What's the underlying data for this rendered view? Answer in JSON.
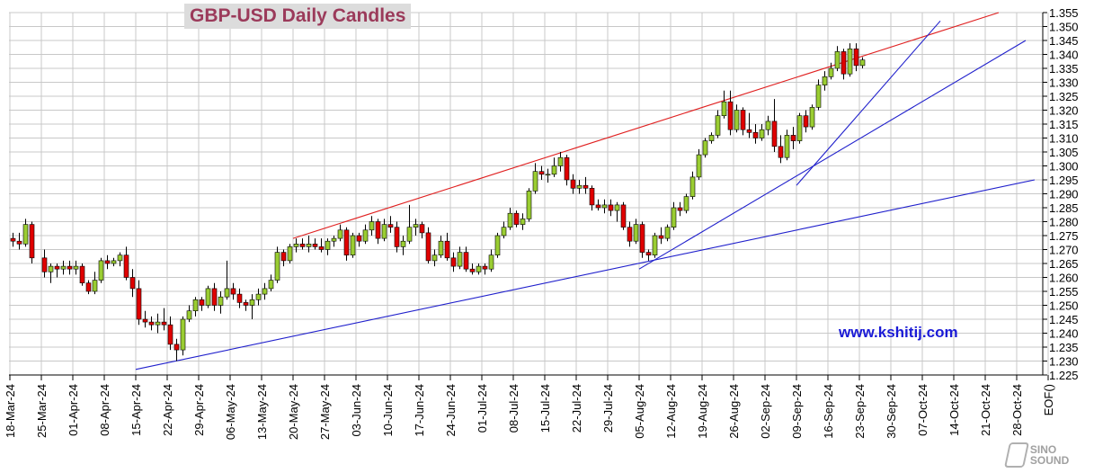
{
  "header": {
    "title": "GBP-USD Daily Candles",
    "website": "www.kshitij.com",
    "watermark_text": "SINO SOUND"
  },
  "colors": {
    "up_candle": "#9acd32",
    "down_candle": "#e00000",
    "grid": "#c8c8c8",
    "resistance_line": "#e02020",
    "support_lines": "#2020cc"
  },
  "chart_data": {
    "type": "candlestick",
    "title": "GBP-USD Daily Candles",
    "ylim": [
      1.225,
      1.355
    ],
    "y_ticks": [
      "1.355",
      "1.350",
      "1.345",
      "1.340",
      "1.335",
      "1.330",
      "1.325",
      "1.320",
      "1.315",
      "1.310",
      "1.305",
      "1.300",
      "1.295",
      "1.290",
      "1.285",
      "1.280",
      "1.275",
      "1.270",
      "1.265",
      "1.260",
      "1.255",
      "1.250",
      "1.245",
      "1.240",
      "1.235",
      "1.230",
      "1.225"
    ],
    "x_tick_labels": [
      "18-Mar-24",
      "25-Mar-24",
      "01-Apr-24",
      "08-Apr-24",
      "15-Apr-24",
      "22-Apr-24",
      "29-Apr-24",
      "06-May-24",
      "13-May-24",
      "20-May-24",
      "27-May-24",
      "03-Jun-24",
      "10-Jun-24",
      "17-Jun-24",
      "24-Jun-24",
      "01-Jul-24",
      "08-Jul-24",
      "15-Jul-24",
      "22-Jul-24",
      "29-Jul-24",
      "05-Aug-24",
      "12-Aug-24",
      "19-Aug-24",
      "26-Aug-24",
      "02-Sep-24",
      "09-Sep-24",
      "16-Sep-24",
      "23-Sep-24",
      "30-Sep-24",
      "07-Oct-24",
      "14-Oct-24",
      "21-Oct-24",
      "28-Oct-24",
      "EOF()"
    ],
    "grid": true,
    "candle_weeks": [
      [
        [
          1.274,
          1.276,
          1.271,
          1.273
        ],
        [
          1.273,
          1.276,
          1.27,
          1.272
        ],
        [
          1.272,
          1.281,
          1.271,
          1.279
        ],
        [
          1.279,
          1.28,
          1.265,
          1.267
        ]
      ],
      [
        [
          1.267,
          1.27,
          1.26,
          1.262
        ],
        [
          1.262,
          1.265,
          1.258,
          1.264
        ],
        [
          1.264,
          1.265,
          1.26,
          1.263
        ],
        [
          1.263,
          1.266,
          1.261,
          1.264
        ],
        [
          1.264,
          1.266,
          1.261,
          1.263
        ]
      ],
      [
        [
          1.263,
          1.266,
          1.261,
          1.264
        ],
        [
          1.264,
          1.265,
          1.257,
          1.258
        ],
        [
          1.258,
          1.259,
          1.254,
          1.255
        ],
        [
          1.255,
          1.262,
          1.254,
          1.259
        ],
        [
          1.259,
          1.267,
          1.258,
          1.266
        ]
      ],
      [
        [
          1.266,
          1.268,
          1.263,
          1.265
        ],
        [
          1.265,
          1.267,
          1.264,
          1.266
        ],
        [
          1.266,
          1.269,
          1.264,
          1.268
        ],
        [
          1.268,
          1.271,
          1.259,
          1.26
        ],
        [
          1.26,
          1.263,
          1.253,
          1.256
        ]
      ],
      [
        [
          1.256,
          1.259,
          1.243,
          1.245
        ],
        [
          1.245,
          1.248,
          1.242,
          1.244
        ],
        [
          1.244,
          1.246,
          1.241,
          1.243
        ],
        [
          1.243,
          1.247,
          1.24,
          1.244
        ],
        [
          1.244,
          1.249,
          1.241,
          1.243
        ]
      ],
      [
        [
          1.243,
          1.246,
          1.234,
          1.236
        ],
        [
          1.236,
          1.238,
          1.23,
          1.234
        ],
        [
          1.234,
          1.246,
          1.232,
          1.245
        ],
        [
          1.245,
          1.25,
          1.244,
          1.248
        ],
        [
          1.248,
          1.253,
          1.246,
          1.252
        ]
      ],
      [
        [
          1.252,
          1.253,
          1.248,
          1.25
        ],
        [
          1.25,
          1.257,
          1.249,
          1.256
        ],
        [
          1.256,
          1.258,
          1.248,
          1.25
        ],
        [
          1.25,
          1.255,
          1.247,
          1.253
        ],
        [
          1.253,
          1.266,
          1.252,
          1.256
        ]
      ],
      [
        [
          1.256,
          1.258,
          1.252,
          1.254
        ],
        [
          1.254,
          1.256,
          1.249,
          1.251
        ],
        [
          1.251,
          1.252,
          1.248,
          1.25
        ],
        [
          1.25,
          1.254,
          1.245,
          1.252
        ],
        [
          1.252,
          1.256,
          1.25,
          1.254
        ]
      ],
      [
        [
          1.254,
          1.258,
          1.252,
          1.256
        ],
        [
          1.256,
          1.261,
          1.255,
          1.259
        ],
        [
          1.259,
          1.271,
          1.258,
          1.269
        ],
        [
          1.269,
          1.27,
          1.264,
          1.266
        ],
        [
          1.266,
          1.272,
          1.265,
          1.271
        ]
      ],
      [
        [
          1.271,
          1.274,
          1.269,
          1.272
        ],
        [
          1.272,
          1.274,
          1.27,
          1.271
        ],
        [
          1.271,
          1.275,
          1.269,
          1.272
        ],
        [
          1.272,
          1.274,
          1.27,
          1.271
        ],
        [
          1.271,
          1.274,
          1.269,
          1.27
        ]
      ],
      [
        [
          1.27,
          1.274,
          1.268,
          1.273
        ],
        [
          1.273,
          1.275,
          1.271,
          1.274
        ],
        [
          1.274,
          1.279,
          1.273,
          1.277
        ],
        [
          1.277,
          1.278,
          1.266,
          1.268
        ],
        [
          1.268,
          1.276,
          1.267,
          1.275
        ]
      ],
      [
        [
          1.275,
          1.276,
          1.271,
          1.273
        ],
        [
          1.273,
          1.279,
          1.272,
          1.277
        ],
        [
          1.277,
          1.282,
          1.275,
          1.28
        ],
        [
          1.28,
          1.281,
          1.272,
          1.274
        ],
        [
          1.274,
          1.281,
          1.273,
          1.279
        ]
      ],
      [
        [
          1.279,
          1.282,
          1.276,
          1.278
        ],
        [
          1.278,
          1.28,
          1.269,
          1.271
        ],
        [
          1.271,
          1.275,
          1.268,
          1.273
        ],
        [
          1.273,
          1.286,
          1.272,
          1.278
        ],
        [
          1.278,
          1.281,
          1.275,
          1.279
        ]
      ],
      [
        [
          1.279,
          1.28,
          1.274,
          1.276
        ],
        [
          1.276,
          1.278,
          1.265,
          1.266
        ],
        [
          1.266,
          1.27,
          1.264,
          1.268
        ],
        [
          1.268,
          1.275,
          1.267,
          1.273
        ],
        [
          1.273,
          1.276,
          1.266,
          1.267
        ]
      ],
      [
        [
          1.267,
          1.269,
          1.262,
          1.264
        ],
        [
          1.264,
          1.271,
          1.263,
          1.269
        ],
        [
          1.269,
          1.271,
          1.262,
          1.263
        ],
        [
          1.263,
          1.265,
          1.261,
          1.262
        ],
        [
          1.262,
          1.265,
          1.261,
          1.264
        ]
      ],
      [
        [
          1.264,
          1.265,
          1.261,
          1.263
        ],
        [
          1.263,
          1.27,
          1.262,
          1.268
        ],
        [
          1.268,
          1.276,
          1.267,
          1.275
        ],
        [
          1.275,
          1.28,
          1.274,
          1.278
        ],
        [
          1.278,
          1.285,
          1.277,
          1.283
        ]
      ],
      [
        [
          1.283,
          1.284,
          1.278,
          1.279
        ],
        [
          1.279,
          1.283,
          1.277,
          1.281
        ],
        [
          1.281,
          1.292,
          1.28,
          1.291
        ],
        [
          1.291,
          1.301,
          1.29,
          1.298
        ],
        [
          1.298,
          1.3,
          1.295,
          1.297
        ]
      ],
      [
        [
          1.297,
          1.299,
          1.294,
          1.297
        ],
        [
          1.297,
          1.303,
          1.296,
          1.3
        ],
        [
          1.3,
          1.305,
          1.298,
          1.303
        ],
        [
          1.303,
          1.304,
          1.293,
          1.295
        ],
        [
          1.295,
          1.297,
          1.29,
          1.292
        ]
      ],
      [
        [
          1.292,
          1.295,
          1.29,
          1.293
        ],
        [
          1.293,
          1.296,
          1.29,
          1.292
        ],
        [
          1.292,
          1.293,
          1.284,
          1.286
        ],
        [
          1.286,
          1.288,
          1.284,
          1.285
        ],
        [
          1.285,
          1.288,
          1.283,
          1.286
        ]
      ],
      [
        [
          1.286,
          1.288,
          1.282,
          1.284
        ],
        [
          1.284,
          1.287,
          1.28,
          1.286
        ],
        [
          1.286,
          1.287,
          1.277,
          1.278
        ],
        [
          1.278,
          1.28,
          1.271,
          1.273
        ],
        [
          1.273,
          1.281,
          1.272,
          1.279
        ]
      ],
      [
        [
          1.279,
          1.28,
          1.267,
          1.269
        ],
        [
          1.269,
          1.27,
          1.266,
          1.268
        ],
        [
          1.268,
          1.276,
          1.267,
          1.275
        ],
        [
          1.275,
          1.278,
          1.272,
          1.274
        ],
        [
          1.274,
          1.279,
          1.273,
          1.278
        ]
      ],
      [
        [
          1.278,
          1.287,
          1.277,
          1.285
        ],
        [
          1.285,
          1.287,
          1.282,
          1.284
        ],
        [
          1.284,
          1.29,
          1.283,
          1.289
        ],
        [
          1.289,
          1.298,
          1.288,
          1.296
        ],
        [
          1.296,
          1.306,
          1.295,
          1.304
        ]
      ],
      [
        [
          1.304,
          1.31,
          1.303,
          1.309
        ],
        [
          1.309,
          1.312,
          1.308,
          1.311
        ],
        [
          1.311,
          1.32,
          1.31,
          1.318
        ],
        [
          1.318,
          1.327,
          1.317,
          1.323
        ],
        [
          1.323,
          1.327,
          1.311,
          1.313
        ]
      ],
      [
        [
          1.313,
          1.322,
          1.312,
          1.32
        ],
        [
          1.32,
          1.321,
          1.311,
          1.313
        ],
        [
          1.313,
          1.319,
          1.31,
          1.312
        ],
        [
          1.312,
          1.315,
          1.308,
          1.31
        ],
        [
          1.31,
          1.315,
          1.309,
          1.313
        ]
      ],
      [
        [
          1.313,
          1.318,
          1.311,
          1.316
        ],
        [
          1.316,
          1.324,
          1.305,
          1.307
        ],
        [
          1.307,
          1.311,
          1.301,
          1.303
        ],
        [
          1.303,
          1.313,
          1.302,
          1.311
        ],
        [
          1.311,
          1.314,
          1.306,
          1.309
        ]
      ],
      [
        [
          1.309,
          1.319,
          1.308,
          1.318
        ],
        [
          1.318,
          1.32,
          1.312,
          1.314
        ],
        [
          1.314,
          1.322,
          1.313,
          1.321
        ],
        [
          1.321,
          1.331,
          1.32,
          1.329
        ],
        [
          1.329,
          1.334,
          1.327,
          1.332
        ]
      ],
      [
        [
          1.332,
          1.337,
          1.331,
          1.335
        ],
        [
          1.335,
          1.343,
          1.334,
          1.341
        ],
        [
          1.341,
          1.342,
          1.331,
          1.333
        ],
        [
          1.333,
          1.344,
          1.332,
          1.342
        ],
        [
          1.342,
          1.344,
          1.334,
          1.336
        ]
      ],
      [
        [
          1.336,
          1.339,
          1.335,
          1.338
        ]
      ]
    ],
    "trendlines": [
      {
        "type": "resistance",
        "start": [
          "20-May-24",
          1.274
        ],
        "end": [
          "24-Oct-24",
          1.355
        ]
      },
      {
        "type": "support",
        "start": [
          "15-Apr-24",
          1.227
        ],
        "end": [
          "01-Nov-24",
          1.295
        ]
      },
      {
        "type": "support",
        "start": [
          "05-Aug-24",
          1.263
        ],
        "end": [
          "30-Oct-24",
          1.345
        ]
      },
      {
        "type": "support",
        "start": [
          "09-Sep-24",
          1.293
        ],
        "end": [
          "11-Oct-24",
          1.352
        ]
      }
    ]
  }
}
